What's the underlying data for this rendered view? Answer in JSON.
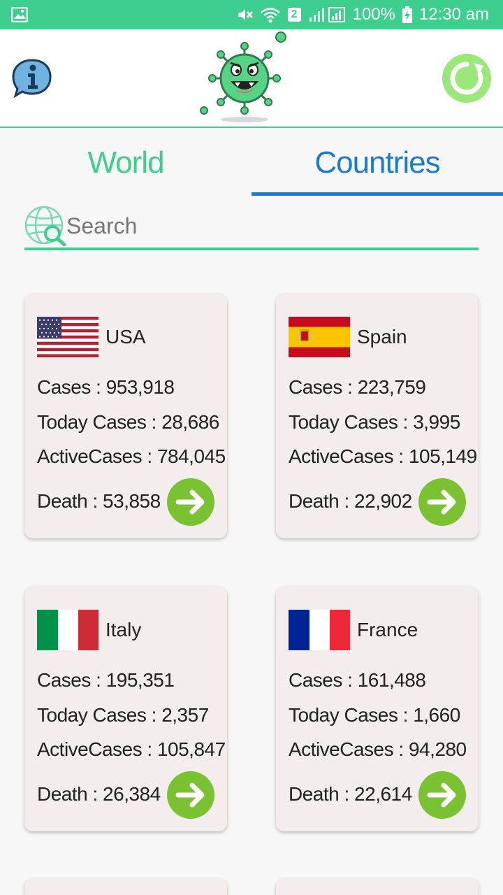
{
  "status_bar": {
    "sim_badge": "2",
    "battery": "100%",
    "time": "12:30 am"
  },
  "tabs": [
    {
      "label": "World",
      "active": false
    },
    {
      "label": "Countries",
      "active": true
    }
  ],
  "search": {
    "placeholder": "Search",
    "value": ""
  },
  "colors": {
    "accent_green": "#3ecf8e",
    "active_tab_blue": "#1a7bd6",
    "action_green": "#7ac231",
    "card_bg": "#f4eded"
  },
  "icons": [
    "photo-icon",
    "mute-icon",
    "wifi-icon",
    "signal-icon",
    "battery-icon",
    "info-icon",
    "virus-logo",
    "refresh-icon",
    "globe-search-icon",
    "arrow-right-icon"
  ],
  "countries": [
    {
      "name": "USA",
      "cases": "Cases : 953,918",
      "today": "Today Cases : 28,686",
      "active": "ActiveCases : 784,045",
      "death": "Death : 53,858"
    },
    {
      "name": "Spain",
      "cases": "Cases : 223,759",
      "today": "Today Cases : 3,995",
      "active": "ActiveCases : 105,149",
      "death": "Death : 22,902"
    },
    {
      "name": "Italy",
      "cases": "Cases : 195,351",
      "today": "Today Cases : 2,357",
      "active": "ActiveCases : 105,847",
      "death": "Death : 26,384"
    },
    {
      "name": "France",
      "cases": "Cases : 161,488",
      "today": "Today Cases : 1,660",
      "active": "ActiveCases : 94,280",
      "death": "Death : 22,614"
    }
  ]
}
